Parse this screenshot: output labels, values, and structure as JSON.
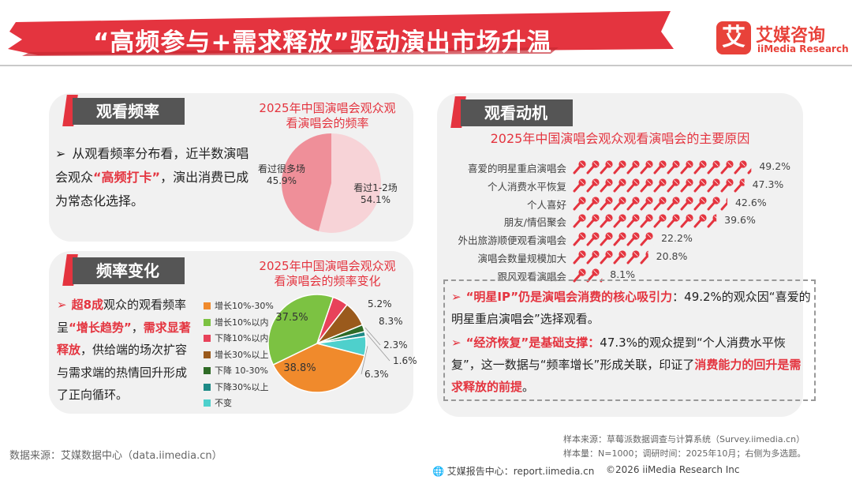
{
  "header": {
    "title": "“高频参与+需求释放”驱动演出市场升温",
    "logo_glyph": "艾",
    "logo_cn": "艾媒咨询",
    "logo_en": "iiMedia Research",
    "accent_color": "#e4343f"
  },
  "section_frequency": {
    "tag": "观看频率",
    "bullet_pre": "从观看频率分布看，近半数演唱会观众",
    "bullet_highlight": "“高频打卡”",
    "bullet_post": "，演出消费已成为常态化选择。"
  },
  "section_change": {
    "tag": "频率变化",
    "b_pre": "超8成",
    "b_mid1": "观众的观看频率呈",
    "b_hl1": "“增长趋势”",
    "b_mid2": "，",
    "b_hl2": "需求显著释放",
    "b_post": "，供给端的场次扩容与需求端的热情回升形成了正向循环。"
  },
  "section_motive": {
    "tag": "观看动机",
    "p1_hl": "“明星IP”仍是演唱会消费的核心吸引力",
    "p1_rest": "：49.2%的观众因“喜爱的明星重启演唱会”选择观看。",
    "p2_hl": "“经济恢复”是基础支撑：",
    "p2_rest": "47.3%的观众提到“个人消费水平恢复”，这一数据与“频率增长”形成关联，印证了",
    "p2_hl2": "消费能力的回升是需求释放的前提",
    "p2_end": "。"
  },
  "footer": {
    "source": "数据来源：艾媒数据中心（data.iimedia.cn）",
    "sample1": "样本来源：草莓派数据调查与计算系统（Survey.iimedia.cn）",
    "sample2": "样本量：N=1000；调研时间：2025年10月；右侧为多选题。",
    "report": "艾媒报告中心：report.iimedia.cn",
    "copyright": "©2026  iiMedia Research  Inc"
  },
  "chart_data": [
    {
      "type": "pie",
      "title": "2025年中国演唱会观众观看演唱会的频率",
      "slices": [
        {
          "label": "看过1-2场",
          "value": 54.1,
          "color": "#f7d3d7"
        },
        {
          "label": "看过很多场",
          "value": 45.9,
          "color": "#ef8f99"
        }
      ],
      "value_labels": [
        "54.1%",
        "45.9%"
      ]
    },
    {
      "type": "pie",
      "title": "2025年中国演唱会观众观看演唱会的频率变化",
      "slices": [
        {
          "label": "增长10%-30%",
          "value": 38.8,
          "color": "#f08a2c"
        },
        {
          "label": "增长10%以内",
          "value": 37.5,
          "color": "#7cc242"
        },
        {
          "label": "下降10%以内",
          "value": 5.2,
          "color": "#e8425a"
        },
        {
          "label": "增长30%以上",
          "value": 8.3,
          "color": "#9a5a1c"
        },
        {
          "label": "下降 10-30%",
          "value": 2.3,
          "color": "#2f6b26"
        },
        {
          "label": "下降30%以上",
          "value": 1.6,
          "color": "#1e8a86"
        },
        {
          "label": "不变",
          "value": 6.3,
          "color": "#4ed0cc"
        }
      ],
      "value_labels": [
        "38.8%",
        "37.5%",
        "5.2%",
        "8.3%",
        "2.3%",
        "1.6%",
        "6.3%"
      ]
    },
    {
      "type": "bar",
      "title": "2025年中国演唱会观众观看演唱会的主要原因",
      "categories": [
        "喜爱的明星重启演唱会",
        "个人消费水平恢复",
        "个人喜好",
        "朋友/情侣聚会",
        "外出旅游顺便观看演唱会",
        "演唱会数量规模加大",
        "跟风观看演唱会"
      ],
      "values": [
        49.2,
        47.3,
        42.6,
        39.6,
        22.2,
        20.8,
        8.1
      ],
      "value_labels": [
        "49.2%",
        "47.3%",
        "42.6%",
        "39.6%",
        "22.2%",
        "20.8%",
        "8.1%"
      ],
      "bar_color": "#e4343f",
      "icon": "microphone-icon"
    }
  ]
}
